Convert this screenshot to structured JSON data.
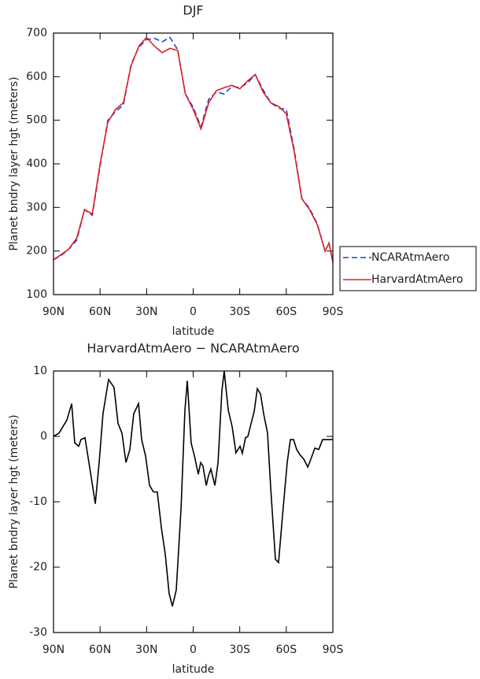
{
  "chart_data": [
    {
      "type": "line",
      "title": "DJF",
      "xlabel": "latitude",
      "ylabel": "Planet bndry layer hgt (meters)",
      "x": [
        90,
        85,
        80,
        75,
        70,
        65,
        60,
        55,
        50,
        45,
        40,
        35,
        30,
        25,
        20,
        15,
        10,
        5,
        0,
        -5,
        -10,
        -15,
        -20,
        -25,
        -30,
        -35,
        -40,
        -45,
        -50,
        -55,
        -60,
        -65,
        -70,
        -75,
        -80,
        -85,
        -87.5,
        -90
      ],
      "series": [
        {
          "name": "NCARAtmAero",
          "color": "#1f3fd6",
          "dash": true,
          "values": [
            180,
            190,
            205,
            225,
            295,
            282,
            395,
            500,
            520,
            535,
            628,
            668,
            685,
            688,
            680,
            690,
            662,
            560,
            530,
            485,
            548,
            565,
            560,
            578,
            575,
            585,
            605,
            570,
            540,
            528,
            525,
            435,
            320,
            298,
            262,
            200,
            218,
            175
          ]
        },
        {
          "name": "HarvardAtmAero",
          "color": "#e02020",
          "dash": false,
          "values": [
            180,
            192,
            205,
            230,
            295,
            285,
            400,
            495,
            525,
            540,
            625,
            670,
            690,
            670,
            655,
            665,
            660,
            560,
            525,
            480,
            540,
            568,
            575,
            580,
            572,
            590,
            605,
            565,
            540,
            532,
            515,
            430,
            320,
            295,
            260,
            200,
            218,
            175
          ]
        }
      ],
      "xlim": [
        90,
        -90
      ],
      "xticks": [
        {
          "value": 90,
          "label": "90N"
        },
        {
          "value": 60,
          "label": "60N"
        },
        {
          "value": 30,
          "label": "30N"
        },
        0,
        {
          "value": -30,
          "label": "30S"
        },
        {
          "value": -60,
          "label": "60S"
        },
        {
          "value": -90,
          "label": "90S"
        }
      ],
      "ylim": [
        100,
        700
      ],
      "yticks": [
        100,
        200,
        300,
        400,
        500,
        600,
        700
      ],
      "legend": "right"
    },
    {
      "type": "line",
      "title": "HarvardAtmAero − NCARAtmAero",
      "xlabel": "latitude",
      "ylabel": "Planet bndry layer hgt (meters)",
      "x": [
        90,
        86.5,
        81.4,
        78.3,
        76.3,
        73.8,
        72.3,
        69.7,
        67.2,
        65.2,
        63.1,
        60.6,
        58.1,
        54.5,
        51,
        48.4,
        45.9,
        43.3,
        40.8,
        38.3,
        35.2,
        33.2,
        30.7,
        28.1,
        25.6,
        23.1,
        20.5,
        18,
        15.5,
        13.4,
        10.9,
        7.8,
        5.3,
        3.8,
        1.3,
        -0.8,
        -3.3,
        -4.8,
        -6.3,
        -8.4,
        -9.9,
        -11.4,
        -14,
        -16,
        -18.5,
        -20,
        -22.6,
        -25.1,
        -27.6,
        -30.2,
        -31.7,
        -33.7,
        -35.3,
        -36.8,
        -39.3,
        -41.3,
        -43.4,
        -45.4,
        -47.9,
        -50,
        -53,
        -55,
        -57.6,
        -60.6,
        -62.6,
        -64.7,
        -66.7,
        -68.7,
        -71.3,
        -73.8,
        -75.8,
        -78.4,
        -80.9,
        -83.4,
        -86,
        -90
      ],
      "series": [
        {
          "name": "HarvardAtmAero − NCARAtmAero",
          "color": "#000000",
          "dash": false,
          "values": [
            0,
            0.5,
            2.5,
            5,
            -1,
            -1.5,
            -0.5,
            -0.2,
            -4,
            -7,
            -10.3,
            -4,
            3.5,
            8.7,
            7.5,
            2,
            0.5,
            -4,
            -2,
            3.5,
            5,
            -0.5,
            -3,
            -7.5,
            -8.5,
            -8.5,
            -14,
            -18,
            -24,
            -26,
            -23.5,
            -11,
            4,
            8.5,
            -1,
            -3,
            -5.8,
            -4,
            -4.5,
            -7.5,
            -6,
            -5,
            -7.5,
            -4,
            7,
            10,
            4,
            1.5,
            -2.5,
            -1.5,
            -2.6,
            -0.2,
            0,
            1.5,
            3.8,
            7.3,
            6.5,
            3.5,
            0.5,
            -8,
            -18.8,
            -19.3,
            -12,
            -4,
            -0.5,
            -0.5,
            -2,
            -2.8,
            -3.5,
            -4.7,
            -3.5,
            -1.8,
            -2,
            -0.5,
            -0.5,
            -0.5
          ]
        }
      ],
      "xlim": [
        90,
        -90
      ],
      "xticks": [
        {
          "value": 90,
          "label": "90N"
        },
        {
          "value": 60,
          "label": "60N"
        },
        {
          "value": 30,
          "label": "30N"
        },
        0,
        {
          "value": -30,
          "label": "30S"
        },
        {
          "value": -60,
          "label": "60S"
        },
        {
          "value": -90,
          "label": "90S"
        }
      ],
      "ylim": [
        -30,
        10
      ],
      "yticks": [
        -30,
        -20,
        -10,
        0,
        10
      ]
    }
  ]
}
